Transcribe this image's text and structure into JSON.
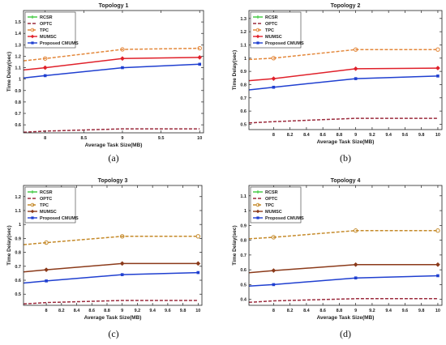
{
  "chart_data": [
    {
      "type": "line",
      "title": "Topology 1",
      "caption": "(a)",
      "xlabel": "Average Task Size(MB)",
      "ylabel": "Time Delay(sec)",
      "xlim": [
        7.72,
        10.05
      ],
      "ylim": [
        0.53,
        1.6
      ],
      "xticks": [
        8,
        8.5,
        9,
        9.5,
        10
      ],
      "xtick_labels": [
        "8",
        "8.5",
        "9",
        "9.5",
        "10"
      ],
      "yticks": [
        0.6,
        0.7,
        0.8,
        0.9,
        1.0,
        1.1,
        1.2,
        1.3,
        1.4,
        1.5
      ],
      "ytick_labels": [
        "0.6",
        "0.7",
        "0.8",
        "0.9",
        "1",
        "1.1",
        "1.2",
        "1.3",
        "1.4",
        "1.5"
      ],
      "legend": "top-left",
      "grid": false,
      "x": [
        7.72,
        8,
        9,
        10
      ],
      "series": [
        {
          "name": "RCSR",
          "values": [
            null,
            null,
            null,
            null
          ],
          "color": "#3cc83c",
          "dash": "",
          "marker": "none"
        },
        {
          "name": "OPTC",
          "values": [
            0.535,
            0.545,
            0.565,
            0.565
          ],
          "color": "#9b2a3c",
          "dash": "4,2",
          "marker": "none"
        },
        {
          "name": "TPC",
          "values": [
            1.16,
            1.18,
            1.26,
            1.27
          ],
          "color": "#e3873a",
          "dash": "4,2",
          "marker": "circle"
        },
        {
          "name": "MUMSC",
          "values": [
            1.08,
            1.1,
            1.18,
            1.19
          ],
          "color": "#e0202a",
          "dash": "",
          "marker": "diamond"
        },
        {
          "name": "Proposed CMUMS",
          "values": [
            1.01,
            1.03,
            1.1,
            1.13
          ],
          "color": "#1f3fd0",
          "dash": "",
          "marker": "square"
        }
      ]
    },
    {
      "type": "line",
      "title": "Topology 2",
      "caption": "(b)",
      "xlabel": "Average Task Size(MB)",
      "ylabel": "Time Delay(sec)",
      "xlim": [
        7.7,
        10.05
      ],
      "ylim": [
        0.46,
        1.36
      ],
      "xticks": [
        8,
        8.2,
        8.4,
        8.6,
        8.8,
        9,
        9.2,
        9.4,
        9.6,
        9.8,
        10
      ],
      "xtick_labels": [
        "8",
        "8.2",
        "8.4",
        "8.6",
        "8.8",
        "9",
        "9.2",
        "9.4",
        "9.6",
        "9.8",
        "10"
      ],
      "yticks": [
        0.5,
        0.6,
        0.7,
        0.8,
        0.9,
        1.0,
        1.1,
        1.2,
        1.3
      ],
      "ytick_labels": [
        "0.5",
        "0.6",
        "0.7",
        "0.8",
        "0.9",
        "1",
        "1.1",
        "1.2",
        "1.3"
      ],
      "legend": "top-left",
      "grid": false,
      "x": [
        7.7,
        8,
        9,
        10
      ],
      "series": [
        {
          "name": "RCSR",
          "values": [
            null,
            null,
            null,
            null
          ],
          "color": "#3cc83c",
          "dash": "",
          "marker": "none"
        },
        {
          "name": "OPTC",
          "values": [
            0.51,
            0.52,
            0.545,
            0.545
          ],
          "color": "#9b2a3c",
          "dash": "4,2",
          "marker": "none"
        },
        {
          "name": "TPC",
          "values": [
            0.99,
            1.0,
            1.065,
            1.065
          ],
          "color": "#e3873a",
          "dash": "4,2",
          "marker": "circle"
        },
        {
          "name": "MUMSC",
          "values": [
            0.83,
            0.845,
            0.92,
            0.925
          ],
          "color": "#e0202a",
          "dash": "",
          "marker": "diamond"
        },
        {
          "name": "Proposed CMUMS",
          "values": [
            0.76,
            0.78,
            0.845,
            0.865
          ],
          "color": "#1f3fd0",
          "dash": "",
          "marker": "square"
        }
      ]
    },
    {
      "type": "line",
      "title": "Topology 3",
      "caption": "(c)",
      "xlabel": "Average Task Size(MB)",
      "ylabel": "Time Delay(sec)",
      "xlim": [
        7.7,
        10.05
      ],
      "ylim": [
        0.42,
        1.28
      ],
      "xticks": [
        8,
        8.2,
        8.4,
        8.6,
        8.8,
        9,
        9.2,
        9.4,
        9.6,
        9.8,
        10
      ],
      "xtick_labels": [
        "8",
        "8.2",
        "8.4",
        "8.6",
        "8.8",
        "9",
        "9.2",
        "9.4",
        "9.6",
        "9.8",
        "10"
      ],
      "yticks": [
        0.5,
        0.6,
        0.7,
        0.8,
        0.9,
        1.0,
        1.1,
        1.2
      ],
      "ytick_labels": [
        "0.5",
        "0.6",
        "0.7",
        "0.8",
        "0.9",
        "1",
        "1.1",
        "1.2"
      ],
      "legend": "top-left",
      "grid": false,
      "x": [
        7.7,
        8,
        9,
        10
      ],
      "series": [
        {
          "name": "RCSR",
          "values": [
            null,
            null,
            null,
            null
          ],
          "color": "#3cc83c",
          "dash": "",
          "marker": "none"
        },
        {
          "name": "OPTC",
          "values": [
            0.43,
            0.44,
            0.455,
            0.455
          ],
          "color": "#9b2a3c",
          "dash": "4,2",
          "marker": "none"
        },
        {
          "name": "TPC",
          "values": [
            0.855,
            0.87,
            0.915,
            0.915
          ],
          "color": "#c58a2a",
          "dash": "4,2",
          "marker": "circle"
        },
        {
          "name": "MUMSC",
          "values": [
            0.66,
            0.675,
            0.72,
            0.72
          ],
          "color": "#8b3a1a",
          "dash": "",
          "marker": "diamond"
        },
        {
          "name": "Proposed CMUMS",
          "values": [
            0.58,
            0.595,
            0.64,
            0.655
          ],
          "color": "#1f3fd0",
          "dash": "",
          "marker": "square"
        }
      ]
    },
    {
      "type": "line",
      "title": "Topology 4",
      "caption": "(d)",
      "xlabel": "Average Task Size(MB)",
      "ylabel": "Time Delay(sec)",
      "xlim": [
        7.7,
        10.05
      ],
      "ylim": [
        0.36,
        1.17
      ],
      "xticks": [
        8,
        8.2,
        8.4,
        8.6,
        8.8,
        9,
        9.2,
        9.4,
        9.6,
        9.8,
        10
      ],
      "xtick_labels": [
        "8",
        "8.2",
        "8.4",
        "8.6",
        "8.8",
        "9",
        "9.2",
        "9.4",
        "9.6",
        "9.8",
        "10"
      ],
      "yticks": [
        0.4,
        0.5,
        0.6,
        0.7,
        0.8,
        0.9,
        1.0,
        1.1
      ],
      "ytick_labels": [
        "0.4",
        "0.5",
        "0.6",
        "0.7",
        "0.8",
        "0.9",
        "1",
        "1.1"
      ],
      "legend": "top-left",
      "grid": false,
      "x": [
        7.7,
        8,
        9,
        10
      ],
      "series": [
        {
          "name": "RCSR",
          "values": [
            null,
            null,
            null,
            null
          ],
          "color": "#3cc83c",
          "dash": "",
          "marker": "none"
        },
        {
          "name": "OPTC",
          "values": [
            0.38,
            0.39,
            0.405,
            0.405
          ],
          "color": "#9b2a3c",
          "dash": "4,2",
          "marker": "none"
        },
        {
          "name": "TPC",
          "values": [
            0.81,
            0.82,
            0.865,
            0.865
          ],
          "color": "#c58a2a",
          "dash": "4,2",
          "marker": "circle"
        },
        {
          "name": "MUMSC",
          "values": [
            0.58,
            0.595,
            0.635,
            0.635
          ],
          "color": "#8b3a1a",
          "dash": "",
          "marker": "diamond"
        },
        {
          "name": "Proposed CMUMS",
          "values": [
            0.49,
            0.5,
            0.545,
            0.56
          ],
          "color": "#1f3fd0",
          "dash": "",
          "marker": "square"
        }
      ]
    }
  ]
}
